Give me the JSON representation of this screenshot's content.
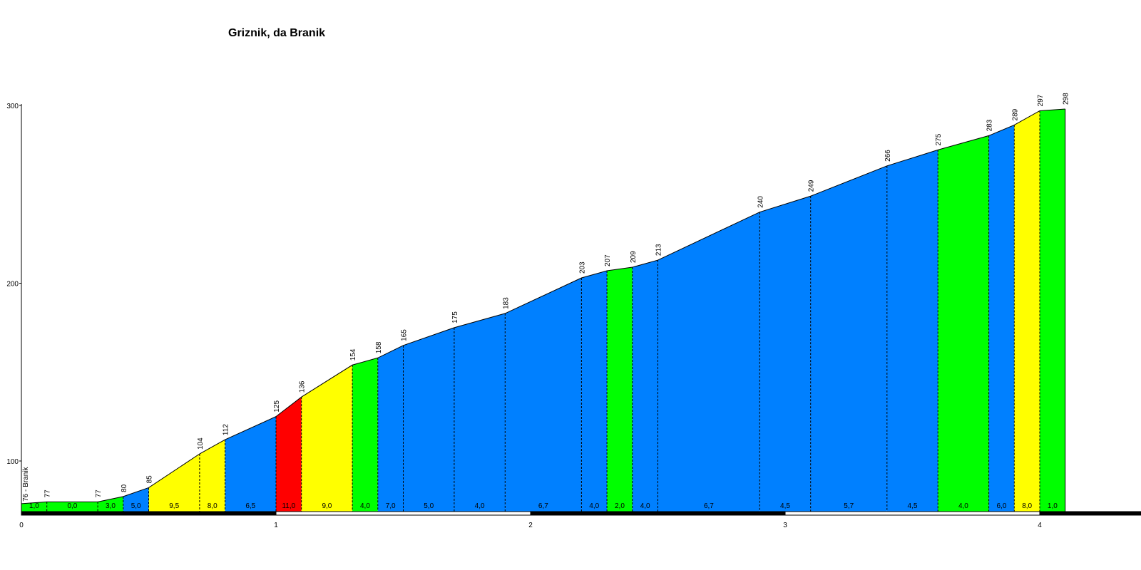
{
  "chart_data": {
    "type": "area",
    "title": "Griznik, da Branik",
    "xlabel": "",
    "ylabel": "",
    "xlim": [
      0,
      4.3
    ],
    "ylim": [
      70,
      300
    ],
    "x_ticks": [
      {
        "value": 0,
        "label": "0"
      },
      {
        "value": 1,
        "label": "1"
      },
      {
        "value": 2,
        "label": "2"
      },
      {
        "value": 3,
        "label": "3"
      },
      {
        "value": 4,
        "label": "4"
      }
    ],
    "y_ticks": [
      {
        "value": 100,
        "label": "100"
      },
      {
        "value": 200,
        "label": "200"
      },
      {
        "value": 300,
        "label": "300"
      }
    ],
    "start_label": "76 - Branik",
    "grade_colors": {
      "green": "#00ff00",
      "blue": "#0080ff",
      "yellow": "#ffff00",
      "red": "#ff0000"
    },
    "points": [
      {
        "km": 0.0,
        "alt": 76,
        "label": ""
      },
      {
        "km": 0.1,
        "alt": 77,
        "label": "77"
      },
      {
        "km": 0.3,
        "alt": 77,
        "label": "77"
      },
      {
        "km": 0.4,
        "alt": 80,
        "label": "80"
      },
      {
        "km": 0.5,
        "alt": 85,
        "label": "85"
      },
      {
        "km": 0.7,
        "alt": 104,
        "label": "104"
      },
      {
        "km": 0.8,
        "alt": 112,
        "label": "112"
      },
      {
        "km": 1.0,
        "alt": 125,
        "label": "125"
      },
      {
        "km": 1.1,
        "alt": 136,
        "label": "136"
      },
      {
        "km": 1.3,
        "alt": 154,
        "label": "154"
      },
      {
        "km": 1.4,
        "alt": 158,
        "label": "158"
      },
      {
        "km": 1.5,
        "alt": 165,
        "label": "165"
      },
      {
        "km": 1.7,
        "alt": 175,
        "label": "175"
      },
      {
        "km": 1.9,
        "alt": 183,
        "label": "183"
      },
      {
        "km": 2.2,
        "alt": 203,
        "label": "203"
      },
      {
        "km": 2.3,
        "alt": 207,
        "label": "207"
      },
      {
        "km": 2.4,
        "alt": 209,
        "label": "209"
      },
      {
        "km": 2.5,
        "alt": 213,
        "label": "213"
      },
      {
        "km": 2.9,
        "alt": 240,
        "label": "240"
      },
      {
        "km": 3.1,
        "alt": 249,
        "label": "249"
      },
      {
        "km": 3.4,
        "alt": 266,
        "label": "266"
      },
      {
        "km": 3.6,
        "alt": 275,
        "label": "275"
      },
      {
        "km": 3.8,
        "alt": 283,
        "label": "283"
      },
      {
        "km": 3.9,
        "alt": 289,
        "label": "289"
      },
      {
        "km": 4.0,
        "alt": 297,
        "label": "297"
      },
      {
        "km": 4.1,
        "alt": 298,
        "label": "298"
      }
    ],
    "segments": [
      {
        "grade": "1,0",
        "color": "green"
      },
      {
        "grade": "0,0",
        "color": "green"
      },
      {
        "grade": "3,0",
        "color": "green"
      },
      {
        "grade": "5,0",
        "color": "blue"
      },
      {
        "grade": "9,5",
        "color": "yellow"
      },
      {
        "grade": "8,0",
        "color": "yellow"
      },
      {
        "grade": "6,5",
        "color": "blue"
      },
      {
        "grade": "11,0",
        "color": "red"
      },
      {
        "grade": "9,0",
        "color": "yellow"
      },
      {
        "grade": "4,0",
        "color": "green"
      },
      {
        "grade": "7,0",
        "color": "blue"
      },
      {
        "grade": "5,0",
        "color": "blue"
      },
      {
        "grade": "4,0",
        "color": "blue"
      },
      {
        "grade": "6,7",
        "color": "blue"
      },
      {
        "grade": "4,0",
        "color": "blue"
      },
      {
        "grade": "2,0",
        "color": "green"
      },
      {
        "grade": "4,0",
        "color": "blue"
      },
      {
        "grade": "6,7",
        "color": "blue"
      },
      {
        "grade": "4,5",
        "color": "blue"
      },
      {
        "grade": "5,7",
        "color": "blue"
      },
      {
        "grade": "4,5",
        "color": "blue"
      },
      {
        "grade": "4,0",
        "color": "green"
      },
      {
        "grade": "6,0",
        "color": "blue"
      },
      {
        "grade": "8,0",
        "color": "yellow"
      },
      {
        "grade": "1,0",
        "color": "green"
      }
    ]
  }
}
